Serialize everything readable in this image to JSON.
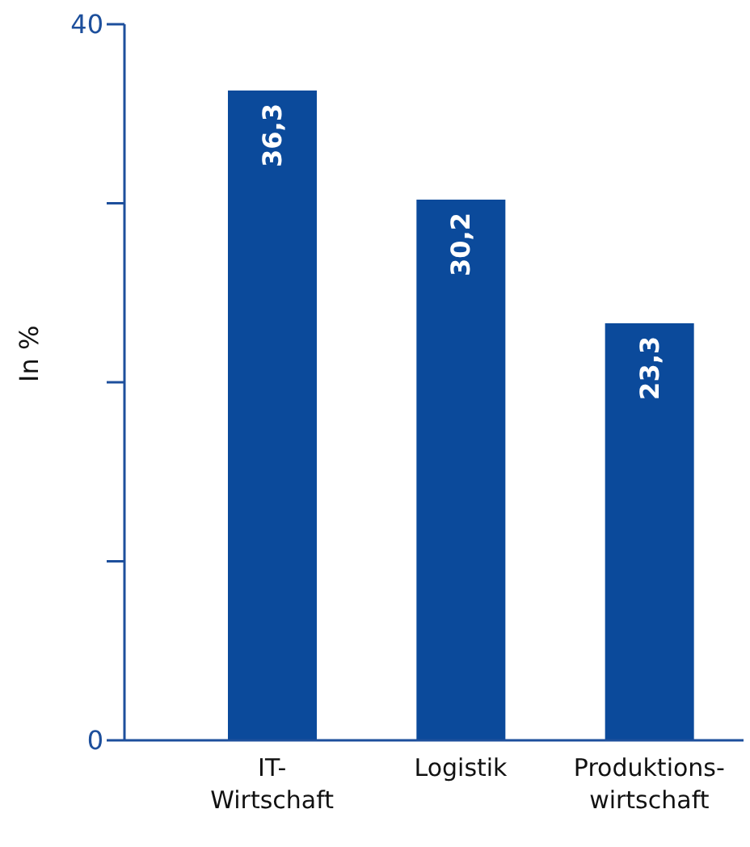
{
  "chart_data": {
    "type": "bar",
    "ylabel": "In %",
    "categories": [
      "IT-\nWirtschaft",
      "Logistik",
      "Produktions-\nwirtschaft"
    ],
    "values": [
      36.3,
      30.2,
      23.3
    ],
    "value_labels": [
      "36,3",
      "30,2",
      "23,3"
    ],
    "color": "#0b4a9b",
    "ylim": [
      0,
      40
    ],
    "yticks": [
      0,
      {
        "value": 10,
        "label": null
      },
      {
        "value": 20,
        "label": null
      },
      {
        "value": 30,
        "label": null
      },
      40
    ],
    "grid": false
  }
}
